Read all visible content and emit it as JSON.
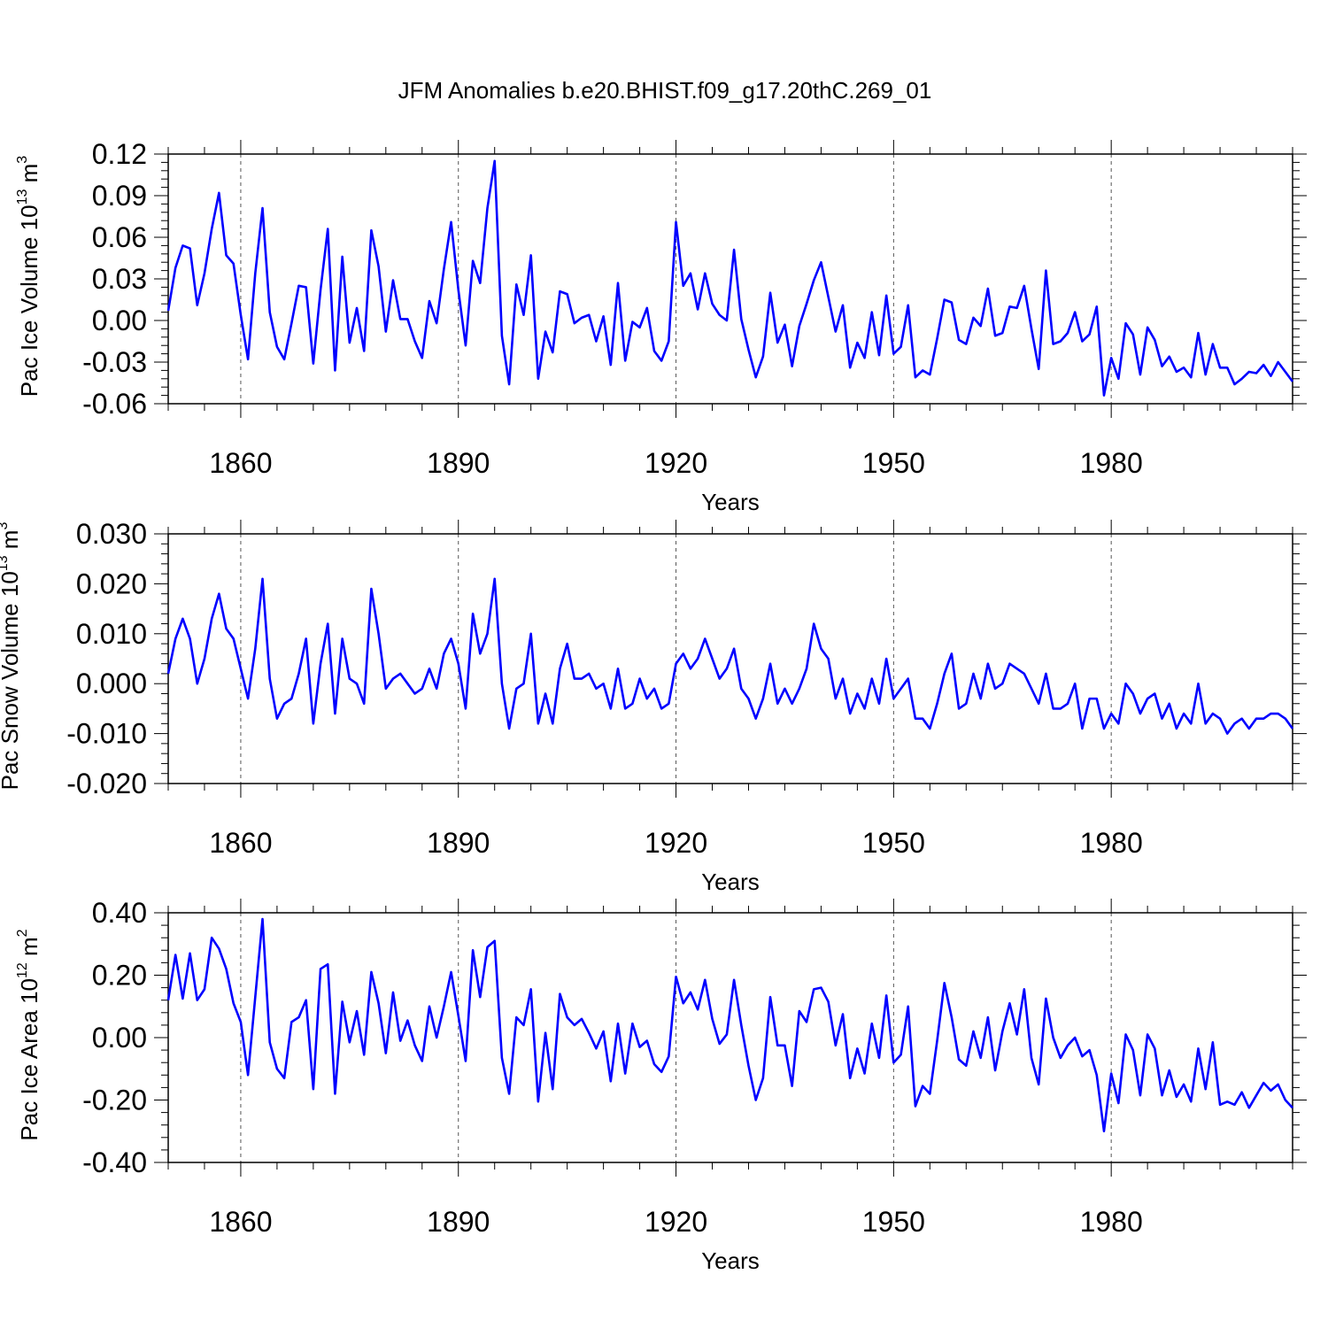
{
  "figure_title": "JFM Anomalies b.e20.BHIST.f09_g17.20thC.269_01",
  "colors": {
    "line": "#0000ff",
    "axis": "#000000",
    "grid": "#555555"
  },
  "chart_data": [
    {
      "type": "line",
      "title": "JFM Anomalies b.e20.BHIST.f09_g17.20thC.269_01",
      "xlabel": "Years",
      "ylabel": {
        "base": "Pac Ice Volume 10",
        "exp1": "13",
        "unit": " m",
        "exp2": "3"
      },
      "xlim": [
        1850,
        2005
      ],
      "ylim": [
        -0.06,
        0.12
      ],
      "yticks": [
        "0.12",
        "0.09",
        "0.06",
        "0.03",
        "0.00",
        "-0.03",
        "-0.06"
      ],
      "ytick_values": [
        0.12,
        0.09,
        0.06,
        0.03,
        0.0,
        -0.03,
        -0.06
      ],
      "xticks": [
        "1860",
        "1890",
        "1920",
        "1950",
        "1980"
      ],
      "xtick_values": [
        1860,
        1890,
        1920,
        1950,
        1980
      ],
      "grid": "vertical dashed at major x ticks",
      "x_start": 1850,
      "values": [
        0.007,
        0.038,
        0.054,
        0.052,
        0.011,
        0.034,
        0.066,
        0.092,
        0.047,
        0.041,
        0.004,
        -0.028,
        0.034,
        0.081,
        0.006,
        -0.019,
        -0.028,
        -0.002,
        0.025,
        0.024,
        -0.031,
        0.022,
        0.066,
        -0.036,
        0.046,
        -0.016,
        0.009,
        -0.022,
        0.065,
        0.039,
        -0.008,
        0.029,
        0.001,
        0.001,
        -0.015,
        -0.027,
        0.014,
        -0.002,
        0.037,
        0.071,
        0.022,
        -0.018,
        0.043,
        0.027,
        0.081,
        0.115,
        -0.011,
        -0.046,
        0.026,
        0.004,
        0.047,
        -0.042,
        -0.008,
        -0.023,
        0.021,
        0.019,
        -0.002,
        0.002,
        0.004,
        -0.015,
        0.003,
        -0.032,
        0.027,
        -0.029,
        -0.001,
        -0.005,
        0.009,
        -0.022,
        -0.029,
        -0.015,
        0.071,
        0.025,
        0.034,
        0.008,
        0.034,
        0.012,
        0.004,
        0.0,
        0.051,
        0.001,
        -0.021,
        -0.041,
        -0.026,
        0.02,
        -0.016,
        -0.003,
        -0.033,
        -0.004,
        0.012,
        0.029,
        0.042,
        0.017,
        -0.008,
        0.011,
        -0.034,
        -0.016,
        -0.027,
        0.006,
        -0.025,
        0.018,
        -0.024,
        -0.019,
        0.011,
        -0.041,
        -0.036,
        -0.039,
        -0.013,
        0.015,
        0.013,
        -0.014,
        -0.017,
        0.002,
        -0.004,
        0.023,
        -0.011,
        -0.009,
        0.01,
        0.009,
        0.025,
        -0.006,
        -0.035,
        0.036,
        -0.017,
        -0.015,
        -0.009,
        0.006,
        -0.015,
        -0.01,
        0.01,
        -0.054,
        -0.027,
        -0.042,
        -0.002,
        -0.01,
        -0.039,
        -0.005,
        -0.014,
        -0.033,
        -0.026,
        -0.037,
        -0.034,
        -0.041,
        -0.009,
        -0.039,
        -0.017,
        -0.034,
        -0.034,
        -0.046,
        -0.042,
        -0.037,
        -0.038,
        -0.032,
        -0.04,
        -0.03,
        -0.037,
        -0.044
      ]
    },
    {
      "type": "line",
      "xlabel": "Years",
      "ylabel": {
        "base": "Pac Snow Volume 10",
        "exp1": "13",
        "unit": " m",
        "exp2": "3"
      },
      "xlim": [
        1850,
        2005
      ],
      "ylim": [
        -0.02,
        0.03
      ],
      "yticks": [
        "0.030",
        "0.020",
        "0.010",
        "0.000",
        "-0.010",
        "-0.020"
      ],
      "ytick_values": [
        0.03,
        0.02,
        0.01,
        0.0,
        -0.01,
        -0.02
      ],
      "xticks": [
        "1860",
        "1890",
        "1920",
        "1950",
        "1980"
      ],
      "xtick_values": [
        1860,
        1890,
        1920,
        1950,
        1980
      ],
      "grid": "vertical dashed at major x ticks",
      "x_start": 1850,
      "values": [
        0.002,
        0.009,
        0.013,
        0.009,
        0.0,
        0.005,
        0.013,
        0.018,
        0.011,
        0.009,
        0.003,
        -0.003,
        0.007,
        0.021,
        0.001,
        -0.007,
        -0.004,
        -0.003,
        0.002,
        0.009,
        -0.008,
        0.004,
        0.012,
        -0.006,
        0.009,
        0.001,
        0.0,
        -0.004,
        0.019,
        0.01,
        -0.001,
        0.001,
        0.002,
        0.0,
        -0.002,
        -0.001,
        0.003,
        -0.001,
        0.006,
        0.009,
        0.004,
        -0.005,
        0.014,
        0.006,
        0.01,
        0.021,
        0.0,
        -0.009,
        -0.001,
        0.0,
        0.01,
        -0.008,
        -0.002,
        -0.008,
        0.003,
        0.008,
        0.001,
        0.001,
        0.002,
        -0.001,
        0.0,
        -0.005,
        0.003,
        -0.005,
        -0.004,
        0.001,
        -0.003,
        -0.001,
        -0.005,
        -0.004,
        0.004,
        0.006,
        0.003,
        0.005,
        0.009,
        0.005,
        0.001,
        0.003,
        0.007,
        -0.001,
        -0.003,
        -0.007,
        -0.003,
        0.004,
        -0.004,
        -0.001,
        -0.004,
        -0.001,
        0.003,
        0.012,
        0.007,
        0.005,
        -0.003,
        0.001,
        -0.006,
        -0.002,
        -0.005,
        0.001,
        -0.004,
        0.005,
        -0.003,
        -0.001,
        0.001,
        -0.007,
        -0.007,
        -0.009,
        -0.004,
        0.002,
        0.006,
        -0.005,
        -0.004,
        0.002,
        -0.003,
        0.004,
        -0.001,
        0.0,
        0.004,
        0.003,
        0.002,
        -0.001,
        -0.004,
        0.002,
        -0.005,
        -0.005,
        -0.004,
        0.0,
        -0.009,
        -0.003,
        -0.003,
        -0.009,
        -0.006,
        -0.008,
        0.0,
        -0.002,
        -0.006,
        -0.003,
        -0.002,
        -0.007,
        -0.004,
        -0.009,
        -0.006,
        -0.008,
        0.0,
        -0.008,
        -0.006,
        -0.007,
        -0.01,
        -0.008,
        -0.007,
        -0.009,
        -0.007,
        -0.007,
        -0.006,
        -0.006,
        -0.007,
        -0.009
      ]
    },
    {
      "type": "line",
      "xlabel": "Years",
      "ylabel": {
        "base": "Pac Ice Area 10",
        "exp1": "12",
        "unit": " m",
        "exp2": "2"
      },
      "xlim": [
        1850,
        2005
      ],
      "ylim": [
        -0.4,
        0.4
      ],
      "yticks": [
        "0.40",
        "0.20",
        "0.00",
        "-0.20",
        "-0.40"
      ],
      "ytick_values": [
        0.4,
        0.2,
        0.0,
        -0.2,
        -0.4
      ],
      "xticks": [
        "1860",
        "1890",
        "1920",
        "1950",
        "1980"
      ],
      "xtick_values": [
        1860,
        1890,
        1920,
        1950,
        1980
      ],
      "grid": "vertical dashed at major x ticks",
      "x_start": 1850,
      "values": [
        0.12,
        0.265,
        0.125,
        0.27,
        0.12,
        0.155,
        0.32,
        0.285,
        0.22,
        0.11,
        0.05,
        -0.12,
        0.13,
        0.38,
        -0.015,
        -0.1,
        -0.13,
        0.05,
        0.065,
        0.12,
        -0.165,
        0.22,
        0.235,
        -0.18,
        0.115,
        -0.015,
        0.085,
        -0.055,
        0.21,
        0.11,
        -0.05,
        0.145,
        -0.01,
        0.055,
        -0.025,
        -0.075,
        0.1,
        0.0,
        0.1,
        0.21,
        0.07,
        -0.075,
        0.28,
        0.13,
        0.29,
        0.31,
        -0.065,
        -0.18,
        0.065,
        0.04,
        0.155,
        -0.205,
        0.015,
        -0.165,
        0.14,
        0.065,
        0.04,
        0.06,
        0.015,
        -0.035,
        0.02,
        -0.14,
        0.045,
        -0.115,
        0.045,
        -0.03,
        -0.01,
        -0.085,
        -0.11,
        -0.06,
        0.195,
        0.11,
        0.145,
        0.09,
        0.185,
        0.06,
        -0.02,
        0.01,
        0.185,
        0.04,
        -0.09,
        -0.2,
        -0.13,
        0.13,
        -0.025,
        -0.025,
        -0.155,
        0.085,
        0.05,
        0.155,
        0.16,
        0.115,
        -0.025,
        0.075,
        -0.13,
        -0.035,
        -0.115,
        0.045,
        -0.065,
        0.135,
        -0.08,
        -0.055,
        0.1,
        -0.22,
        -0.155,
        -0.18,
        -0.01,
        0.175,
        0.065,
        -0.07,
        -0.09,
        0.02,
        -0.065,
        0.065,
        -0.105,
        0.02,
        0.11,
        0.01,
        0.155,
        -0.065,
        -0.15,
        0.125,
        0.0,
        -0.065,
        -0.025,
        0.0,
        -0.06,
        -0.04,
        -0.12,
        -0.3,
        -0.115,
        -0.21,
        0.01,
        -0.04,
        -0.185,
        0.01,
        -0.035,
        -0.185,
        -0.105,
        -0.19,
        -0.15,
        -0.205,
        -0.035,
        -0.165,
        -0.015,
        -0.215,
        -0.205,
        -0.215,
        -0.175,
        -0.225,
        -0.185,
        -0.145,
        -0.17,
        -0.15,
        -0.2,
        -0.225
      ]
    }
  ]
}
